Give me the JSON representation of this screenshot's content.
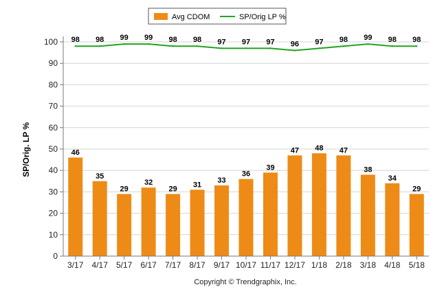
{
  "chart_data": {
    "type": "bar",
    "categories": [
      "3/17",
      "4/17",
      "5/17",
      "6/17",
      "7/17",
      "8/17",
      "9/17",
      "10/17",
      "11/17",
      "12/17",
      "1/18",
      "2/18",
      "3/18",
      "4/18",
      "5/18"
    ],
    "series": [
      {
        "name": "Avg CDOM",
        "type": "bar",
        "color": "#ee8b17",
        "values": [
          46,
          35,
          29,
          32,
          29,
          31,
          33,
          36,
          39,
          47,
          48,
          47,
          38,
          34,
          29
        ]
      },
      {
        "name": "SP/Orig LP %",
        "type": "line",
        "color": "#1fa41f",
        "values": [
          98,
          98,
          99,
          99,
          98,
          98,
          97,
          97,
          97,
          96,
          97,
          98,
          99,
          98,
          98
        ]
      }
    ],
    "ylabel": "SP/Orig. LP %",
    "xlabel": "",
    "ylim": [
      0,
      100
    ],
    "yticks": [
      0,
      10,
      20,
      30,
      40,
      50,
      60,
      70,
      80,
      90,
      100
    ],
    "grid": true,
    "legend_position": "top-center"
  },
  "footer": {
    "copyright": "Copyright © Trendgraphix, Inc."
  }
}
